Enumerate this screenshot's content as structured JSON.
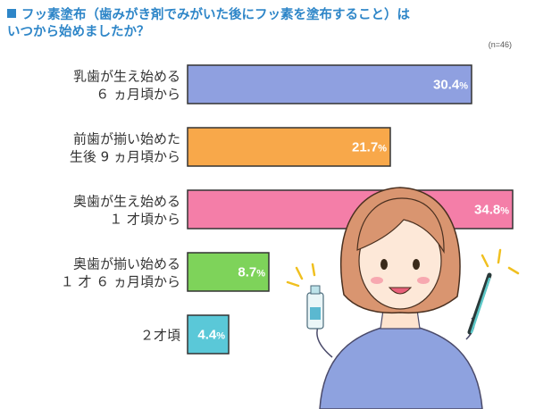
{
  "header": {
    "title_line1": "フッ素塗布（歯みがき剤でみがいた後にフッ素を塗布すること）は",
    "title_line2": "いつから始めましたか？",
    "sample_note": "(n=46)"
  },
  "chart_data": {
    "type": "bar",
    "orientation": "horizontal",
    "title": "フッ素塗布（歯みがき剤でみがいた後にフッ素を塗布すること）はいつから始めましたか？",
    "categories": [
      [
        "乳歯が生え始める",
        "６ ヵ月頃から"
      ],
      [
        "前歯が揃い始めた",
        "生後 9 ヵ月頃から"
      ],
      [
        "奥歯が生え始める",
        "１ 才頃から"
      ],
      [
        "奥歯が揃い始める",
        "１ 才 ６ ヵ月頃から"
      ],
      [
        "２才頃"
      ]
    ],
    "values": [
      30.4,
      21.7,
      34.8,
      8.7,
      4.4
    ],
    "value_suffix": "%",
    "colors": [
      "#8fa0e0",
      "#f8a84a",
      "#f47ea8",
      "#7ed35a",
      "#5ac8d8"
    ],
    "xlim": [
      0,
      34.8
    ],
    "grid": false,
    "legend": "none"
  }
}
